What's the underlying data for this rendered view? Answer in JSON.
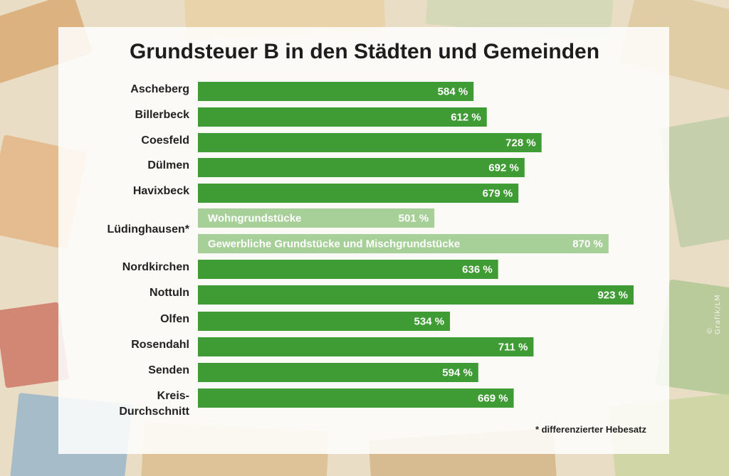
{
  "title": "Grundsteuer B in den Städten und Gemeinden",
  "footnote": "* differenzierter Hebesatz",
  "credit": "© Grafik/LM",
  "colors": {
    "bar": "#3f9b34",
    "bar_light": "#a7cf98",
    "text": "#222222"
  },
  "chart_data": {
    "type": "bar",
    "orientation": "horizontal",
    "title": "Grundsteuer B in den Städten und Gemeinden",
    "unit": "%",
    "xlim": [
      0,
      923
    ],
    "categories": [
      "Ascheberg",
      "Billerbeck",
      "Coesfeld",
      "Dülmen",
      "Havixbeck",
      "Lüdinghausen*",
      "Nordkirchen",
      "Nottuln",
      "Olfen",
      "Rosendahl",
      "Senden",
      "Kreis-Durchschnitt"
    ],
    "bars": [
      {
        "category": "Ascheberg",
        "value": 584,
        "label": "584 %"
      },
      {
        "category": "Billerbeck",
        "value": 612,
        "label": "612 %"
      },
      {
        "category": "Coesfeld",
        "value": 728,
        "label": "728 %"
      },
      {
        "category": "Dülmen",
        "value": 692,
        "label": "692 %"
      },
      {
        "category": "Havixbeck",
        "value": 679,
        "label": "679 %"
      },
      {
        "category": "Lüdinghausen*",
        "sub": "Wohngrundstücke",
        "value": 501,
        "label": "501 %",
        "light": true
      },
      {
        "category": "Lüdinghausen*",
        "sub": "Gewerbliche Grundstücke und Mischgrundstücke",
        "value": 870,
        "label": "870 %",
        "light": true
      },
      {
        "category": "Nordkirchen",
        "value": 636,
        "label": "636 %"
      },
      {
        "category": "Nottuln",
        "value": 923,
        "label": "923 %"
      },
      {
        "category": "Olfen",
        "value": 534,
        "label": "534 %"
      },
      {
        "category": "Rosendahl",
        "value": 711,
        "label": "711 %"
      },
      {
        "category": "Senden",
        "value": 594,
        "label": "594 %"
      },
      {
        "category": "Kreis-Durchschnitt",
        "value": 669,
        "label": "669 %"
      }
    ],
    "category_labels": [
      {
        "text": "Ascheberg"
      },
      {
        "text": "Billerbeck"
      },
      {
        "text": "Coesfeld"
      },
      {
        "text": "Dülmen"
      },
      {
        "text": "Havixbeck"
      },
      {
        "text": "Lüdinghausen*"
      },
      {
        "text": "Nordkirchen"
      },
      {
        "text": "Nottuln"
      },
      {
        "text": "Olfen"
      },
      {
        "text": "Rosendahl"
      },
      {
        "text": "Senden"
      },
      {
        "text": "Kreis-",
        "text2": "Durchschnitt"
      }
    ]
  }
}
